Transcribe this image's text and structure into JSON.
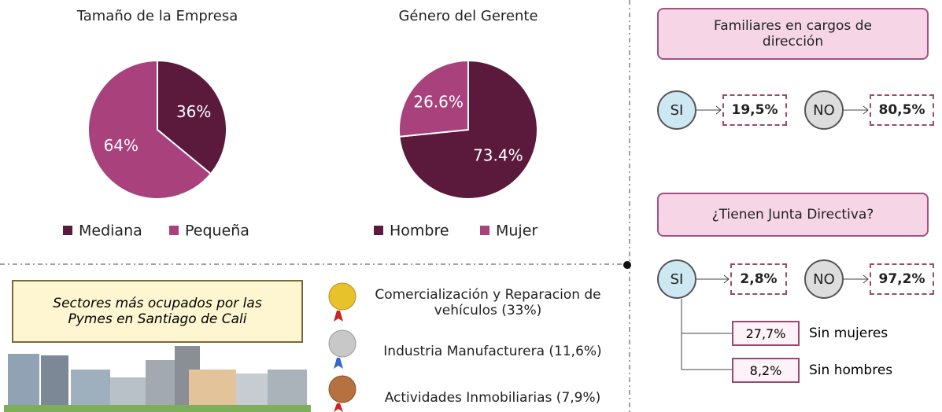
{
  "chart_data": [
    {
      "type": "pie",
      "title": "Tamaño de la Empresa",
      "categories": [
        "Mediana",
        "Pequeña"
      ],
      "values": [
        36,
        64
      ],
      "value_labels": [
        "36%",
        "64%"
      ],
      "colors": [
        "#5b1a3c",
        "#a8417c"
      ]
    },
    {
      "type": "pie",
      "title": "Género del Gerente",
      "categories": [
        "Hombre",
        "Mujer"
      ],
      "values": [
        73.4,
        26.6
      ],
      "value_labels": [
        "73.4%",
        "26.6%"
      ],
      "colors": [
        "#5b1a3c",
        "#a8417c"
      ]
    }
  ],
  "familiares": {
    "title": "Familiares en cargos de dirección",
    "yes": {
      "label": "SI",
      "value": "19,5%"
    },
    "no": {
      "label": "NO",
      "value": "80,5%"
    }
  },
  "junta": {
    "title": "¿Tienen Junta Directiva?",
    "yes": {
      "label": "SI",
      "value": "2,8%"
    },
    "no": {
      "label": "NO",
      "value": "97,2%"
    },
    "sub": [
      {
        "value": "27,7%",
        "label": "Sin mujeres"
      },
      {
        "value": "8,2%",
        "label": "Sin hombres"
      }
    ]
  },
  "sectores": {
    "title": "Sectores más ocupados por las Pymes en Santiago de Cali",
    "items": [
      "Comercialización y Reparacion de vehículos (33%)",
      "Industria Manufacturera (11,6%)",
      "Actividades Inmobiliarias (7,9%)"
    ]
  }
}
